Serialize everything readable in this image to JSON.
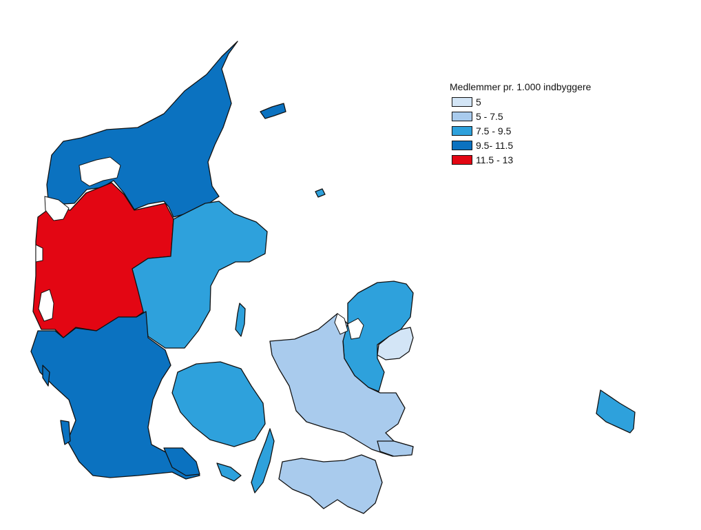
{
  "legend": {
    "title": "Medlemmer pr. 1.000 indbyggere",
    "classes": [
      {
        "label": "5",
        "color": "#d3e5f6"
      },
      {
        "label": "5 - 7.5",
        "color": "#a9cbed"
      },
      {
        "label": "7.5 - 9.5",
        "color": "#2ea1dc"
      },
      {
        "label": "9.5- 11.5",
        "color": "#0b72c0"
      },
      {
        "label": "11.5 - 13",
        "color": "#e30613"
      }
    ]
  },
  "regions": [
    {
      "name": "Nordjylland",
      "class": 3
    },
    {
      "name": "Vestjylland",
      "class": 4
    },
    {
      "name": "Østjylland",
      "class": 2
    },
    {
      "name": "Sydjylland",
      "class": 3
    },
    {
      "name": "Fyn",
      "class": 2
    },
    {
      "name": "Nordsjælland",
      "class": 2
    },
    {
      "name": "København",
      "class": 0
    },
    {
      "name": "Vest- og Sydsjælland",
      "class": 1
    },
    {
      "name": "Lolland-Falster",
      "class": 1
    },
    {
      "name": "Bornholm",
      "class": 2
    }
  ]
}
